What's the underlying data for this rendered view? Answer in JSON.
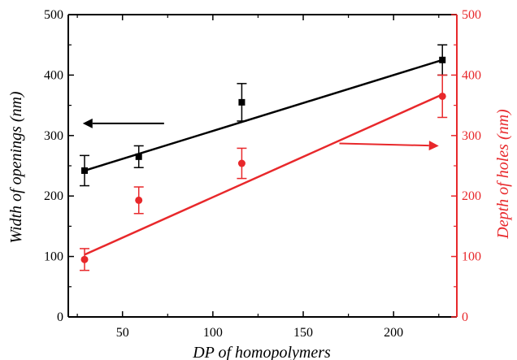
{
  "chart_data": {
    "type": "scatter",
    "xlabel": "DP of homopolymers",
    "xlim": [
      20,
      235
    ],
    "xticks": [
      50,
      100,
      150,
      200
    ],
    "y_left": {
      "label": "Width of openings (nm)",
      "lim": [
        0,
        500
      ],
      "ticks": [
        0,
        100,
        200,
        300,
        400,
        500
      ],
      "color": "#000000"
    },
    "y_right": {
      "label": "Depth of holes (nm)",
      "lim": [
        0,
        500
      ],
      "ticks": [
        0,
        100,
        200,
        300,
        400,
        500
      ],
      "color": "#e8282b"
    },
    "series": [
      {
        "axis": "left",
        "marker": "square",
        "color": "#000000",
        "points": [
          {
            "x": 29,
            "y": 242,
            "err": 25
          },
          {
            "x": 59,
            "y": 265,
            "err": 18
          },
          {
            "x": 116,
            "y": 355,
            "err": 31
          },
          {
            "x": 227,
            "y": 425,
            "err": 25
          }
        ],
        "fit": [
          [
            29,
            242
          ],
          [
            227,
            425
          ]
        ]
      },
      {
        "axis": "right",
        "marker": "circle",
        "color": "#e8282b",
        "points": [
          {
            "x": 29,
            "y": 95,
            "err": 18
          },
          {
            "x": 59,
            "y": 193,
            "err": 22
          },
          {
            "x": 116,
            "y": 254,
            "err": 25
          },
          {
            "x": 227,
            "y": 365,
            "err": 35
          }
        ],
        "fit": [
          [
            29,
            103
          ],
          [
            227,
            368
          ]
        ]
      }
    ],
    "annotations": [
      {
        "type": "arrow",
        "direction": "left",
        "color": "#000000",
        "from": [
          73,
          320
        ],
        "to": [
          28,
          320
        ]
      },
      {
        "type": "arrow",
        "direction": "right",
        "color": "#e8282b",
        "from": [
          170,
          287
        ],
        "to": [
          225,
          283
        ]
      }
    ]
  }
}
